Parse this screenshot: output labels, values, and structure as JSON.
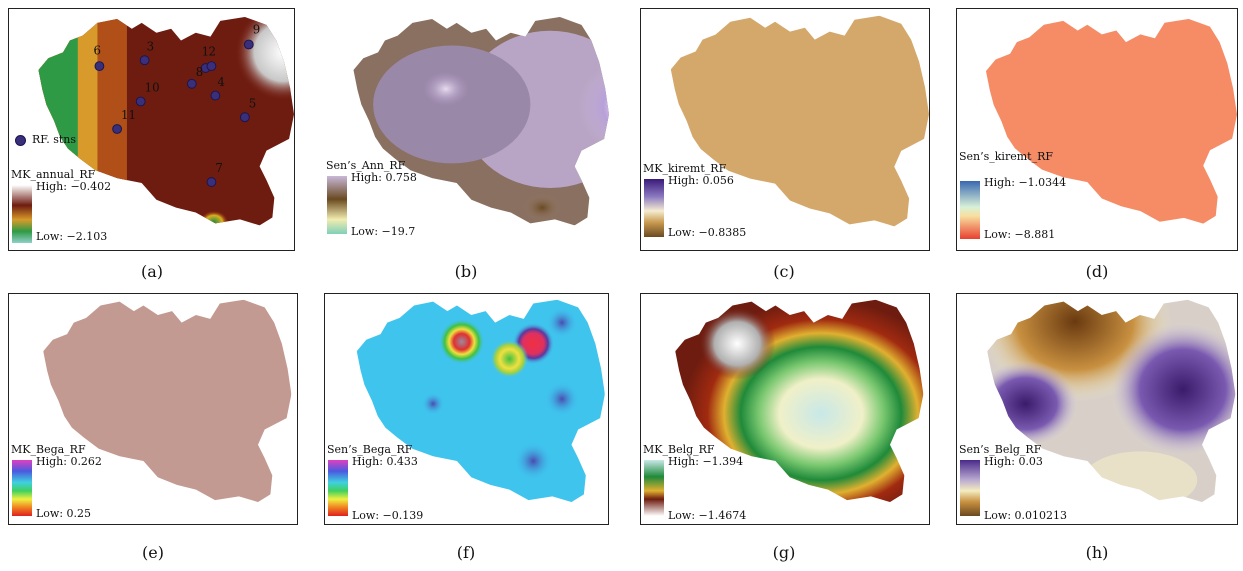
{
  "panels": [
    {
      "id": "a",
      "caption": "(a)",
      "layer": "MK_annual_RF",
      "high": "High: −0.402",
      "low": "Low: −2.103",
      "stations_legend": "RF. stns",
      "stations": [
        "1",
        "2",
        "3",
        "4",
        "5",
        "6",
        "7",
        "8",
        "9",
        "10",
        "11",
        "12"
      ]
    },
    {
      "id": "b",
      "caption": "(b)",
      "layer": "Sen’s_Ann_RF",
      "high": "High: 0.758",
      "low": "Low: −19.7"
    },
    {
      "id": "c",
      "caption": "(c)",
      "layer": "MK_kiremt_RF",
      "high": "High: 0.056",
      "low": "Low: −0.8385"
    },
    {
      "id": "d",
      "caption": "(d)",
      "layer": "Sen’s_kiremt_RF",
      "high": "High: −1.0344",
      "low": "Low: −8.881"
    },
    {
      "id": "e",
      "caption": "(e)",
      "layer": "MK_Bega_RF",
      "high": "High: 0.262",
      "low": "Low: 0.25"
    },
    {
      "id": "f",
      "caption": "(f)",
      "layer": "Sen’s_Bega_RF",
      "high": "High: 0.433",
      "low": "Low: −0.139"
    },
    {
      "id": "g",
      "caption": "(g)",
      "layer": "MK_Belg_RF",
      "high": "High: −1.394",
      "low": "Low: −1.4674"
    },
    {
      "id": "h",
      "caption": "(h)",
      "layer": "Sen’s_Belg_RF",
      "high": "High: 0.03",
      "low": "Low: 0.010213"
    }
  ],
  "colors": {
    "annual": [
      "#ffffff",
      "#7a1a0e",
      "#d8a020",
      "#1f7a2e",
      "#8fd0b0"
    ],
    "sen_ann": [
      "#c8b8d8",
      "#6a4a20",
      "#f2ecb0",
      "#7ed0b8"
    ],
    "kiremt": "#d4a86a",
    "sen_kiremt": "#f58c66",
    "bega": "#c39a91",
    "sen_bega": "#3fc4ee",
    "belg": [
      "#ffffff",
      "#7a1a0e",
      "#1f8a3a",
      "#f0f0c8"
    ],
    "sen_belg": [
      "#4a2a8a",
      "#f3ecc0",
      "#8a5a20"
    ]
  }
}
